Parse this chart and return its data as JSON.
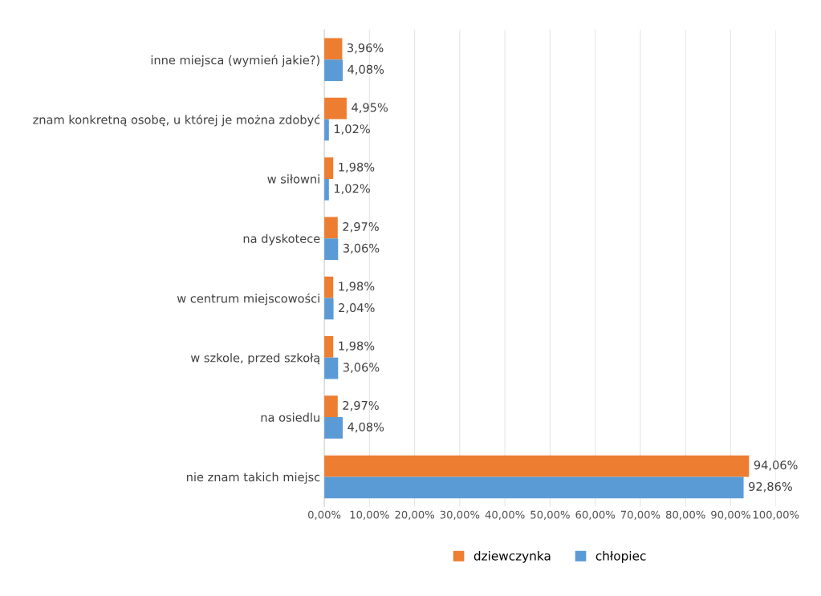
{
  "chart_data": {
    "type": "bar",
    "orientation": "horizontal",
    "categories": [
      "inne miejsca (wymień jakie?)",
      "znam konkretną osobę, u której je można zdobyć",
      "w siłowni",
      "na dyskotece",
      "w centrum miejscowości",
      "w szkole, przed szkołą",
      "na osiedlu",
      "nie znam takich miejsc"
    ],
    "series": [
      {
        "name": "dziewczynka",
        "color": "#ed7d31",
        "values": [
          3.96,
          4.95,
          1.98,
          2.97,
          1.98,
          1.98,
          2.97,
          94.06
        ],
        "value_labels": [
          "3,96%",
          "4,95%",
          "1,98%",
          "2,97%",
          "1,98%",
          "1,98%",
          "2,97%",
          "94,06%"
        ]
      },
      {
        "name": "chłopiec",
        "color": "#5b9bd5",
        "values": [
          4.08,
          1.02,
          1.02,
          3.06,
          2.04,
          3.06,
          4.08,
          92.86
        ],
        "value_labels": [
          "4,08%",
          "1,02%",
          "1,02%",
          "3,06%",
          "2,04%",
          "3,06%",
          "4,08%",
          "92,86%"
        ]
      }
    ],
    "xlim": [
      0,
      100
    ],
    "xticks": [
      {
        "value": 0,
        "label": "0,00%"
      },
      {
        "value": 10,
        "label": "10,00%"
      },
      {
        "value": 20,
        "label": "20,00%"
      },
      {
        "value": 30,
        "label": "30,00%"
      },
      {
        "value": 40,
        "label": "40,00%"
      },
      {
        "value": 50,
        "label": "50,00%"
      },
      {
        "value": 60,
        "label": "60,00%"
      },
      {
        "value": 70,
        "label": "70,00%"
      },
      {
        "value": 80,
        "label": "80,00%"
      },
      {
        "value": 90,
        "label": "90,00%"
      },
      {
        "value": 100,
        "label": "100,00%"
      }
    ],
    "grid": "x",
    "legend": "bottom"
  }
}
